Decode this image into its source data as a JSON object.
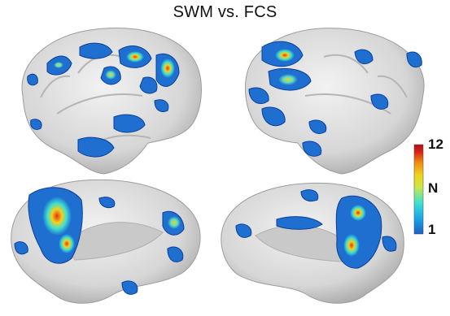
{
  "figure": {
    "title": "SWM vs. FCS",
    "views": [
      "left-lateral",
      "right-lateral",
      "left-medial",
      "right-medial"
    ]
  },
  "colorbar": {
    "max_label": "12",
    "mid_label": "N",
    "min_label": "1",
    "colors": [
      "#1a5fc4",
      "#19a8e8",
      "#3fe0d0",
      "#c8e84a",
      "#f2d21a",
      "#f08a10",
      "#d8201a",
      "#b0101a"
    ]
  },
  "colors": {
    "brain_fill": "#dcdcdc",
    "brain_shade": "#bdbdbd",
    "cluster_blue": "#1e6fd0",
    "cluster_edge": "#0b3f99"
  }
}
